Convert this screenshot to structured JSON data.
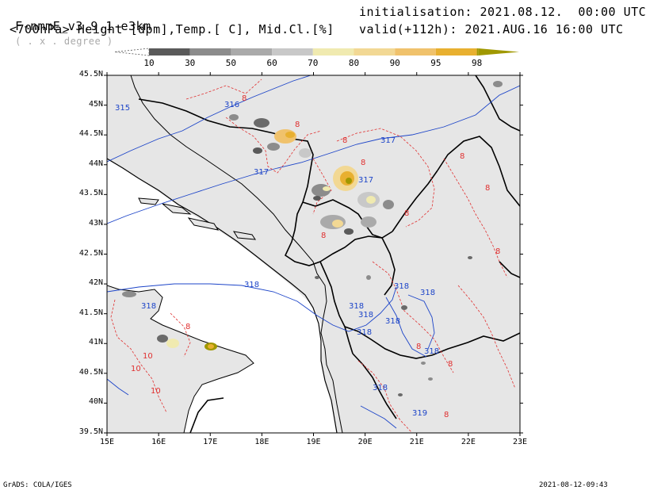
{
  "header": {
    "model": "F-nmmE_v3.9.1-e3km",
    "model_sub": "( . x . degree )",
    "init": "initialisation: 2021.08.12.  00:00 UTC",
    "params": "<700hPa> Height [dpm],Temp.[ C], Mid.Cl.[%]",
    "valid": "valid(+112h): 2021.AUG.16 16:00 UTC"
  },
  "colorbar": {
    "labels": [
      "10",
      "30",
      "50",
      "60",
      "70",
      "80",
      "90",
      "95",
      "98"
    ],
    "colors": [
      "#5a5a5a",
      "#8c8c8c",
      "#aaaaaa",
      "#c8c8c8",
      "#f0eab0",
      "#f2d894",
      "#f0c26c",
      "#e8b030",
      "#a09800"
    ]
  },
  "map": {
    "lat_labels": [
      "45.5N",
      "45N",
      "44.5N",
      "44N",
      "43.5N",
      "43N",
      "42.5N",
      "42N",
      "41.5N",
      "41N",
      "40.5N",
      "40N",
      "39.5N"
    ],
    "lon_labels": [
      "15E",
      "16E",
      "17E",
      "18E",
      "19E",
      "20E",
      "21E",
      "22E",
      "23E"
    ],
    "contour_height": [
      "315",
      "316",
      "317",
      "317",
      "317",
      "318",
      "318",
      "318",
      "318",
      "318",
      "318",
      "318",
      "318",
      "318",
      "318",
      "319"
    ],
    "contour_temp": [
      "8",
      "8",
      "8",
      "8",
      "8",
      "8",
      "8",
      "8",
      "8",
      "8",
      "8",
      "8",
      "8",
      "10",
      "10",
      "10"
    ],
    "colors": {
      "land": "#e6e6e6",
      "height_line": "#1c44c8",
      "temp_line": "#e03030",
      "coast": "#000000"
    }
  },
  "footer": {
    "left": "GrADS: COLA/IGES",
    "right": "2021-08-12-09:43"
  }
}
